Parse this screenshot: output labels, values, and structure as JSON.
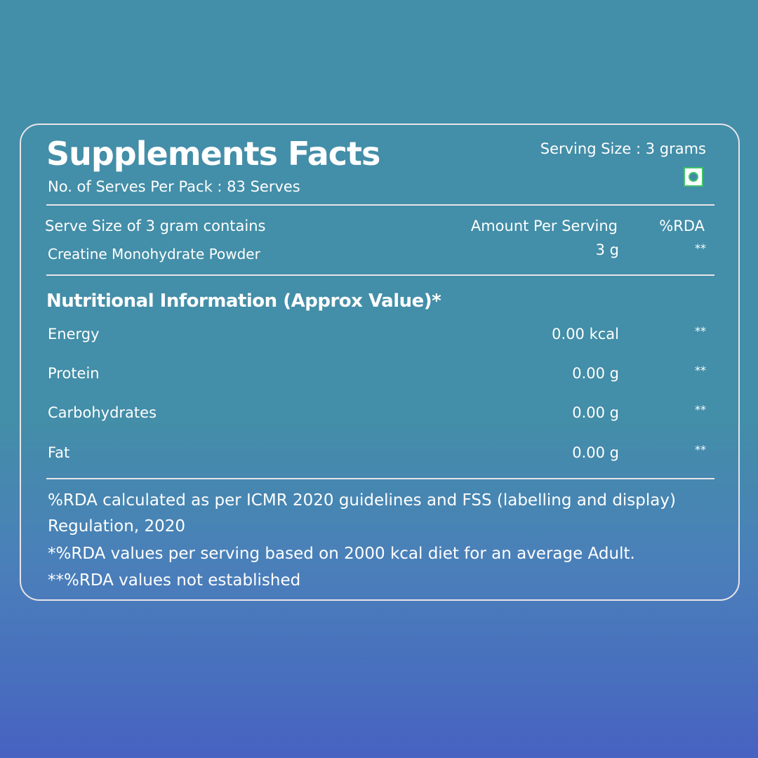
{
  "title": "Supplements Facts",
  "serves_per_pack": "No. of Serves Per Pack : 83 Serves",
  "serving_size": "Serving Size : 3 grams",
  "veg_icon": "veg-mark-icon",
  "table_header": {
    "label": "Serve Size of 3 gram contains",
    "amount": "Amount Per Serving",
    "rda": "%RDA"
  },
  "ingredient": {
    "name": "Creatine Monohydrate Powder",
    "amount": "3 g",
    "rda": "**"
  },
  "nutrition_title": "Nutritional Information (Approx Value)*",
  "nutrients": [
    {
      "name": "Energy",
      "amount": "0.00 kcal",
      "rda": "**"
    },
    {
      "name": "Protein",
      "amount": "0.00 g",
      "rda": "**"
    },
    {
      "name": "Carbohydrates",
      "amount": "0.00 g",
      "rda": "**"
    },
    {
      "name": "Fat",
      "amount": "0.00 g",
      "rda": "**"
    }
  ],
  "notes": [
    "%RDA calculated as per ICMR 2020 guidelines and FSS (labelling and display)",
    "Regulation, 2020",
    "*%RDA values per serving based on 2000 kcal diet for an average Adult.",
    "**%RDA values not established"
  ],
  "colors": {
    "veg_green": "#3fc26b",
    "bg_top": "#438ea8",
    "bg_bottom": "#4762c1"
  }
}
